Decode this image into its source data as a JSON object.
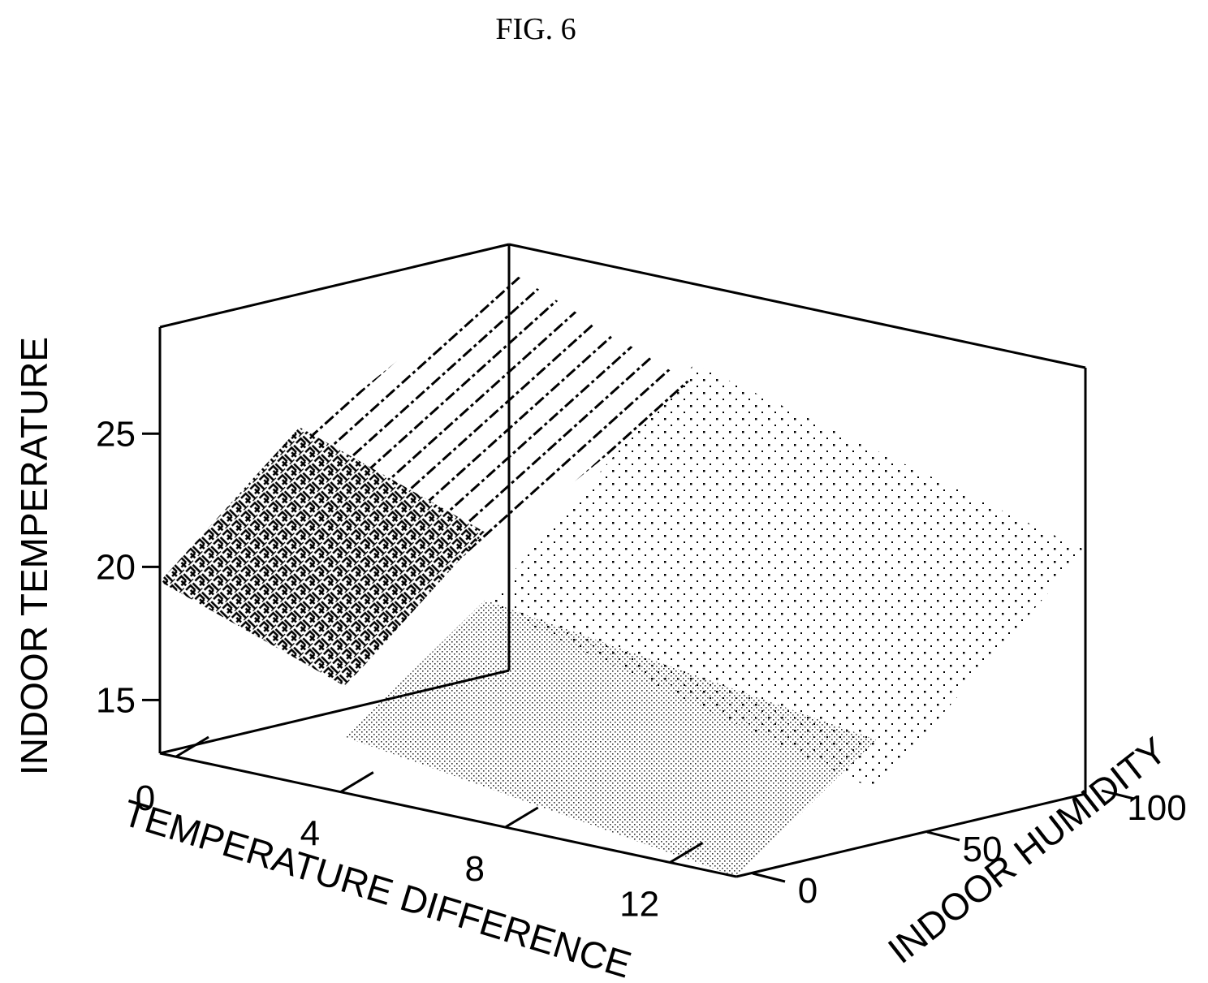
{
  "figure": {
    "title": "FIG. 6"
  },
  "chart_data": {
    "type": "surface3d",
    "title": "FIG. 6",
    "xlabel": "TEMPERATURE DIFFERENCE",
    "ylabel": "INDOOR HUMIDITY",
    "zlabel": "INDOOR TEMPERATURE",
    "x_ticks": [
      "0",
      "4",
      "8",
      "12"
    ],
    "y_ticks": [
      "0",
      "50",
      "100"
    ],
    "z_ticks": [
      "15",
      "20",
      "25"
    ],
    "xlim": [
      0,
      14
    ],
    "ylim": [
      0,
      100
    ],
    "zlim": [
      13,
      29
    ],
    "regions": [
      {
        "pattern": "dash",
        "x": [
          0,
          4.5
        ],
        "y": [
          30,
          100
        ],
        "z_range": [
          20,
          28
        ]
      },
      {
        "pattern": "sparse-dot",
        "x": [
          4.5,
          14
        ],
        "y": [
          40,
          100
        ],
        "z_range": [
          15,
          26
        ]
      },
      {
        "pattern": "herringbone",
        "x": [
          0,
          4.5
        ],
        "y": [
          0,
          40
        ],
        "z_range": [
          17,
          24
        ]
      },
      {
        "pattern": "fine-dot",
        "x": [
          4.5,
          14
        ],
        "y": [
          0,
          40
        ],
        "z_range": [
          13,
          19
        ]
      }
    ],
    "grid": false,
    "legend": "none"
  }
}
